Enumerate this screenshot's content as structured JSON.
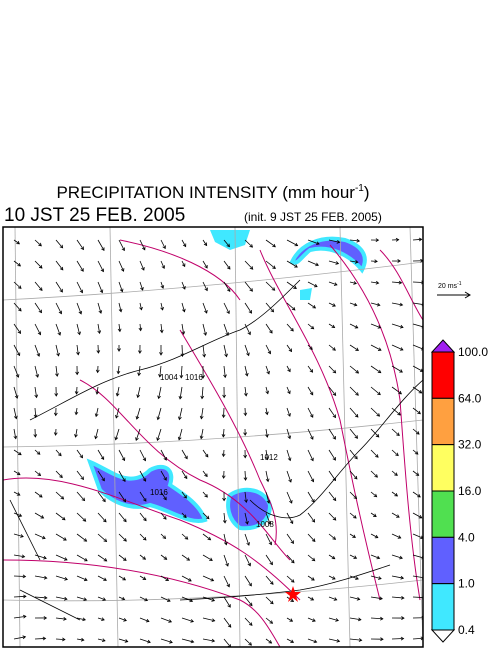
{
  "header": {
    "title": "PRECIPITATION INTENSITY (mm hour",
    "title_sup": "-1",
    "title_end": ")",
    "time": "10 JST 25 FEB. 2005",
    "init": "(init. 9 JST 25 FEB. 2005)"
  },
  "reference_vector": {
    "label": "20 ms",
    "sup": "-1"
  },
  "colorbar": {
    "labels": [
      "100.0",
      "64.0",
      "32.0",
      "16.0",
      "4.0",
      "1.0",
      "0.4"
    ],
    "colors": [
      "#a020f0",
      "#ff0000",
      "#ffa040",
      "#ffff60",
      "#50e050",
      "#6060ff",
      "#40e8ff",
      "#ffffff"
    ]
  },
  "contour_labels": [
    "1016",
    "1012",
    "1008",
    "1004",
    "1016"
  ]
}
